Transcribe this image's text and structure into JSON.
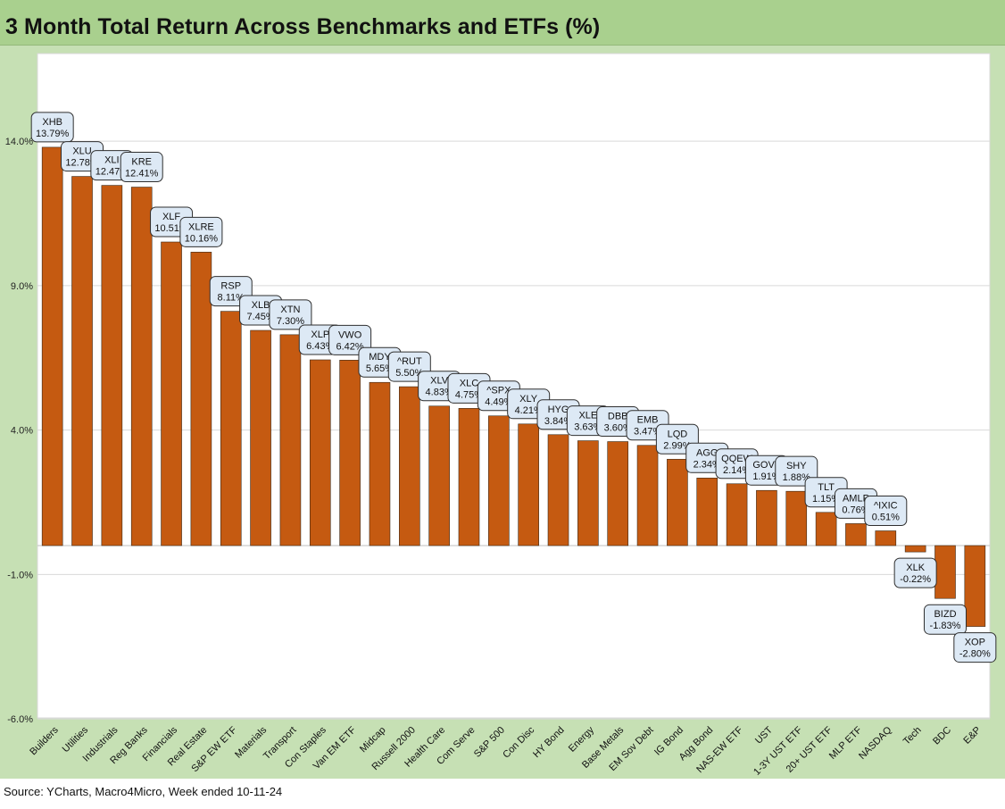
{
  "title": "3 Month Total Return Across Benchmarks and ETFs (%)",
  "source": "Source: YCharts, Macro4Micro, Week ended 10-11-24",
  "colors": {
    "bar": "#c55a11",
    "bar_stroke": "#3a2a1a",
    "label_fill": "#dde9f5",
    "label_stroke": "#2f2f2f",
    "plot_bg": "#ffffff",
    "frame_bg": "#c6e0b4",
    "title_bg": "#a9d08e"
  },
  "chart_data": {
    "type": "bar",
    "ylim": [
      -6,
      17
    ],
    "yticks": [
      14,
      9,
      4,
      -1,
      -6
    ],
    "ytick_labels": [
      "14.0%",
      "9.0%",
      "4.0%",
      "-1.0%",
      "-6.0%"
    ],
    "grid": true,
    "categories": [
      "Builders",
      "Utilities",
      "Industrials",
      "Reg Banks",
      "Financials",
      "Real Estate",
      "S&P EW ETF",
      "Materials",
      "Transport",
      "Con Staples",
      "Van EM ETF",
      "Midcap",
      "Russell 2000",
      "Health Care",
      "Com Serve",
      "S&P 500",
      "Con Disc",
      "HY Bond",
      "Energy",
      "Base Metals",
      "EM Sov Debt",
      "IG Bond",
      "Agg Bond",
      "NAS-EW ETF",
      "UST",
      "1-3Y UST ETF",
      "20+ UST ETF",
      "MLP ETF",
      "NASDAQ",
      "Tech",
      "BDC",
      "E&P"
    ],
    "tickers": [
      "XHB",
      "XLU",
      "XLI",
      "KRE",
      "XLF",
      "XLRE",
      "RSP",
      "XLB",
      "XTN",
      "XLP",
      "VWO",
      "MDY",
      "^RUT",
      "XLV",
      "XLC",
      "^SPX",
      "XLY",
      "HYG",
      "XLE",
      "DBB",
      "EMB",
      "LQD",
      "AGG",
      "QQEW",
      "GOVT",
      "SHY",
      "TLT",
      "AMLP",
      "^IXIC",
      "XLK",
      "BIZD",
      "XOP"
    ],
    "values": [
      13.79,
      12.78,
      12.47,
      12.41,
      10.51,
      10.16,
      8.11,
      7.45,
      7.3,
      6.43,
      6.42,
      5.65,
      5.5,
      4.83,
      4.75,
      4.49,
      4.21,
      3.84,
      3.63,
      3.6,
      3.47,
      2.99,
      2.34,
      2.14,
      1.91,
      1.88,
      1.15,
      0.76,
      0.51,
      -0.22,
      -1.83,
      -2.8
    ],
    "value_labels": [
      "13.79%",
      "12.78%",
      "12.47%",
      "12.41%",
      "10.51%",
      "10.16%",
      "8.11%",
      "7.45%",
      "7.30%",
      "6.43%",
      "6.42%",
      "5.65%",
      "5.50%",
      "4.83%",
      "4.75%",
      "4.49%",
      "4.21%",
      "3.84%",
      "3.63%",
      "3.60%",
      "3.47%",
      "2.99%",
      "2.34%",
      "2.14%",
      "1.91%",
      "1.88%",
      "1.15%",
      "0.76%",
      "0.51%",
      "-0.22%",
      "-1.83%",
      "-2.80%"
    ]
  }
}
